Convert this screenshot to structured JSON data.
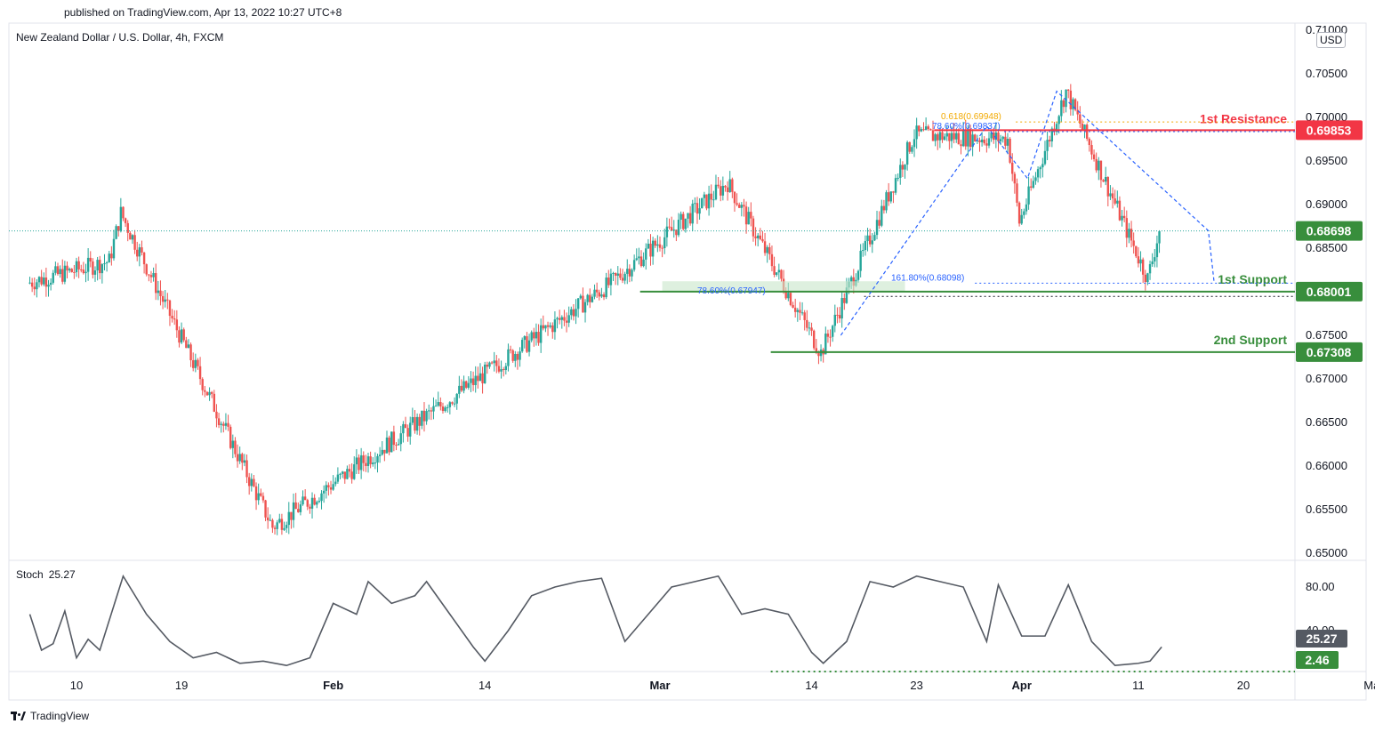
{
  "header": {
    "published": "published on TradingView.com, Apr 13, 2022 10:27 UTC+8",
    "symbol": "New Zealand Dollar / U.S. Dollar, 4h, FXCM",
    "currency": "USD",
    "brand": "TradingView"
  },
  "colors": {
    "up": "#26a69a",
    "down": "#ef5350",
    "resistance": "#f23645",
    "support": "#388e3c",
    "fib": "#2962ff",
    "gold": "#f2a900",
    "stoch": "#555a63"
  },
  "chart_data": [
    {
      "type": "candlestick",
      "price_ticks": [
        "0.71000",
        "0.70500",
        "0.70000",
        "0.69500",
        "0.69000",
        "0.68500",
        "0.68000",
        "0.67500",
        "0.67000",
        "0.66500",
        "0.66000",
        "0.65500",
        "0.65000"
      ],
      "date_ticks": [
        "10",
        "19",
        "Feb",
        "14",
        "Mar",
        "14",
        "23",
        "Apr",
        "11",
        "20",
        "Ma"
      ],
      "ylim": [
        0.6495,
        0.7114
      ],
      "last_price": "0.68698",
      "levels": [
        {
          "name": "1st Resistance",
          "value": 0.69853,
          "label": "0.69853"
        },
        {
          "name": "1st Support",
          "value": 0.68001,
          "label": "0.68001"
        },
        {
          "name": "2nd Support",
          "value": 0.67308,
          "label": "0.67308"
        }
      ],
      "annotations": [
        {
          "text": "0.618(0.69948)",
          "value": 0.69948
        },
        {
          "text": "78.60%(0.69837)",
          "value": 0.69837
        },
        {
          "text": "161.80%(0.68098)",
          "value": 0.68098
        },
        {
          "text": "78.60%(0.67947)",
          "value": 0.67947
        }
      ],
      "swing_path": [
        {
          "date": "2022-03-03",
          "price": 0.681
        },
        {
          "date": "2022-01-13",
          "price": 0.6835
        },
        {
          "date": "2022-01-14",
          "price": 0.689
        },
        {
          "date": "2022-01-27",
          "price": 0.653
        },
        {
          "date": "2022-02-25",
          "price": 0.681
        },
        {
          "date": "2022-03-07",
          "price": 0.6925
        },
        {
          "date": "2022-03-15",
          "price": 0.673
        },
        {
          "date": "2022-03-23",
          "price": 0.698
        },
        {
          "date": "2022-03-31",
          "price": 0.6975
        },
        {
          "date": "2022-04-01",
          "price": 0.688
        },
        {
          "date": "2022-04-05",
          "price": 0.703
        },
        {
          "date": "2022-04-12",
          "price": 0.6815
        },
        {
          "date": "2022-04-13",
          "price": 0.687
        }
      ]
    },
    {
      "type": "line",
      "name": "Stoch",
      "value_label": "25.27",
      "min_label": "2.46",
      "ticks": [
        "80.00",
        "40.00"
      ],
      "ylim": [
        0,
        100
      ],
      "reference_value": 2.46,
      "points": [
        {
          "date": "2022-01-06",
          "value": 55
        },
        {
          "date": "2022-01-07",
          "value": 22
        },
        {
          "date": "2022-01-08",
          "value": 28
        },
        {
          "date": "2022-01-09",
          "value": 58
        },
        {
          "date": "2022-01-10",
          "value": 15
        },
        {
          "date": "2022-01-11",
          "value": 32
        },
        {
          "date": "2022-01-12",
          "value": 22
        },
        {
          "date": "2022-01-14",
          "value": 90
        },
        {
          "date": "2022-01-16",
          "value": 55
        },
        {
          "date": "2022-01-18",
          "value": 30
        },
        {
          "date": "2022-01-20",
          "value": 15
        },
        {
          "date": "2022-01-22",
          "value": 20
        },
        {
          "date": "2022-01-24",
          "value": 10
        },
        {
          "date": "2022-01-26",
          "value": 12
        },
        {
          "date": "2022-01-28",
          "value": 8
        },
        {
          "date": "2022-01-30",
          "value": 15
        },
        {
          "date": "2022-02-01",
          "value": 65
        },
        {
          "date": "2022-02-03",
          "value": 55
        },
        {
          "date": "2022-02-04",
          "value": 85
        },
        {
          "date": "2022-02-06",
          "value": 65
        },
        {
          "date": "2022-02-08",
          "value": 72
        },
        {
          "date": "2022-02-09",
          "value": 85
        },
        {
          "date": "2022-02-11",
          "value": 55
        },
        {
          "date": "2022-02-13",
          "value": 25
        },
        {
          "date": "2022-02-14",
          "value": 12
        },
        {
          "date": "2022-02-16",
          "value": 40
        },
        {
          "date": "2022-02-18",
          "value": 72
        },
        {
          "date": "2022-02-20",
          "value": 80
        },
        {
          "date": "2022-02-22",
          "value": 85
        },
        {
          "date": "2022-02-24",
          "value": 88
        },
        {
          "date": "2022-02-26",
          "value": 30
        },
        {
          "date": "2022-02-28",
          "value": 55
        },
        {
          "date": "2022-03-02",
          "value": 80
        },
        {
          "date": "2022-03-04",
          "value": 85
        },
        {
          "date": "2022-03-06",
          "value": 90
        },
        {
          "date": "2022-03-08",
          "value": 55
        },
        {
          "date": "2022-03-10",
          "value": 60
        },
        {
          "date": "2022-03-12",
          "value": 55
        },
        {
          "date": "2022-03-14",
          "value": 20
        },
        {
          "date": "2022-03-15",
          "value": 10
        },
        {
          "date": "2022-03-17",
          "value": 30
        },
        {
          "date": "2022-03-19",
          "value": 85
        },
        {
          "date": "2022-03-21",
          "value": 80
        },
        {
          "date": "2022-03-23",
          "value": 90
        },
        {
          "date": "2022-03-25",
          "value": 85
        },
        {
          "date": "2022-03-27",
          "value": 80
        },
        {
          "date": "2022-03-29",
          "value": 30
        },
        {
          "date": "2022-03-30",
          "value": 82
        },
        {
          "date": "2022-04-01",
          "value": 35
        },
        {
          "date": "2022-04-03",
          "value": 35
        },
        {
          "date": "2022-04-05",
          "value": 82
        },
        {
          "date": "2022-04-07",
          "value": 30
        },
        {
          "date": "2022-04-09",
          "value": 8
        },
        {
          "date": "2022-04-11",
          "value": 10
        },
        {
          "date": "2022-04-12",
          "value": 12
        },
        {
          "date": "2022-04-13",
          "value": 25
        }
      ]
    }
  ]
}
